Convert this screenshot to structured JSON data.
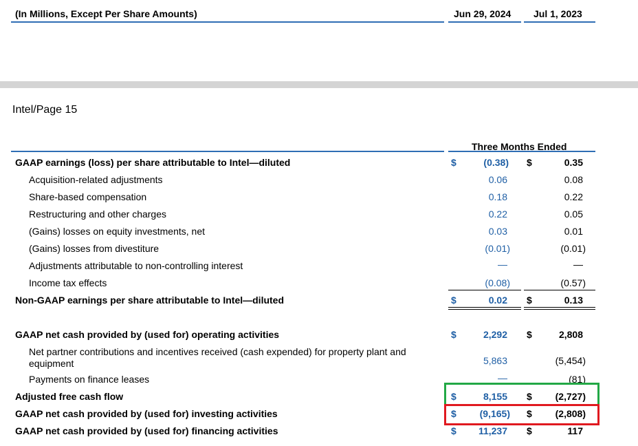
{
  "top_header": {
    "title": "(In Millions, Except Per Share Amounts)",
    "col1": "Jun 29, 2024",
    "col2": "Jul 1, 2023"
  },
  "page_label": "Intel/Page 15",
  "table_header": "Three Months Ended",
  "currency": "$",
  "dash": "—",
  "rows": [
    {
      "label": "GAAP earnings (loss) per share attributable to Intel—diluted",
      "v1": "(0.38)",
      "v2": "0.35"
    },
    {
      "label": "Acquisition-related adjustments",
      "v1": "0.06",
      "v2": "0.08"
    },
    {
      "label": "Share-based compensation",
      "v1": "0.18",
      "v2": "0.22"
    },
    {
      "label": "Restructuring and other charges",
      "v1": "0.22",
      "v2": "0.05"
    },
    {
      "label": "(Gains) losses on equity investments, net",
      "v1": "0.03",
      "v2": "0.01"
    },
    {
      "label": "(Gains) losses from divestiture",
      "v1": "(0.01)",
      "v2": "(0.01)"
    },
    {
      "label": "Adjustments attributable to non-controlling interest",
      "v1": "—",
      "v2": "—"
    },
    {
      "label": "Income tax effects",
      "v1": "(0.08)",
      "v2": "(0.57)"
    },
    {
      "label": "Non-GAAP earnings per share attributable to Intel—diluted",
      "v1": "0.02",
      "v2": "0.13"
    },
    {
      "label": "GAAP net cash provided by (used for) operating activities",
      "v1": "2,292",
      "v2": "2,808"
    },
    {
      "label": "Net partner contributions and incentives received (cash expended) for property plant and",
      "label2": "equipment",
      "v1": "5,863",
      "v2": "(5,454)"
    },
    {
      "label": "Payments on finance leases",
      "v1": "—",
      "v2": "(81)"
    },
    {
      "label": "Adjusted free cash flow",
      "v1": "8,155",
      "v2": "(2,727)"
    },
    {
      "label": "GAAP net cash provided by (used for) investing activities",
      "v1": "(9,165)",
      "v2": "(2,808)"
    },
    {
      "label": "GAAP net cash provided by (used for) financing activities",
      "v1": "11,237",
      "v2": "117"
    }
  ],
  "colors": {
    "accent_blue": "#1f5fa5",
    "rule_blue": "#2e6db4",
    "highlight_green": "#22a845",
    "highlight_red": "#e0191f"
  }
}
